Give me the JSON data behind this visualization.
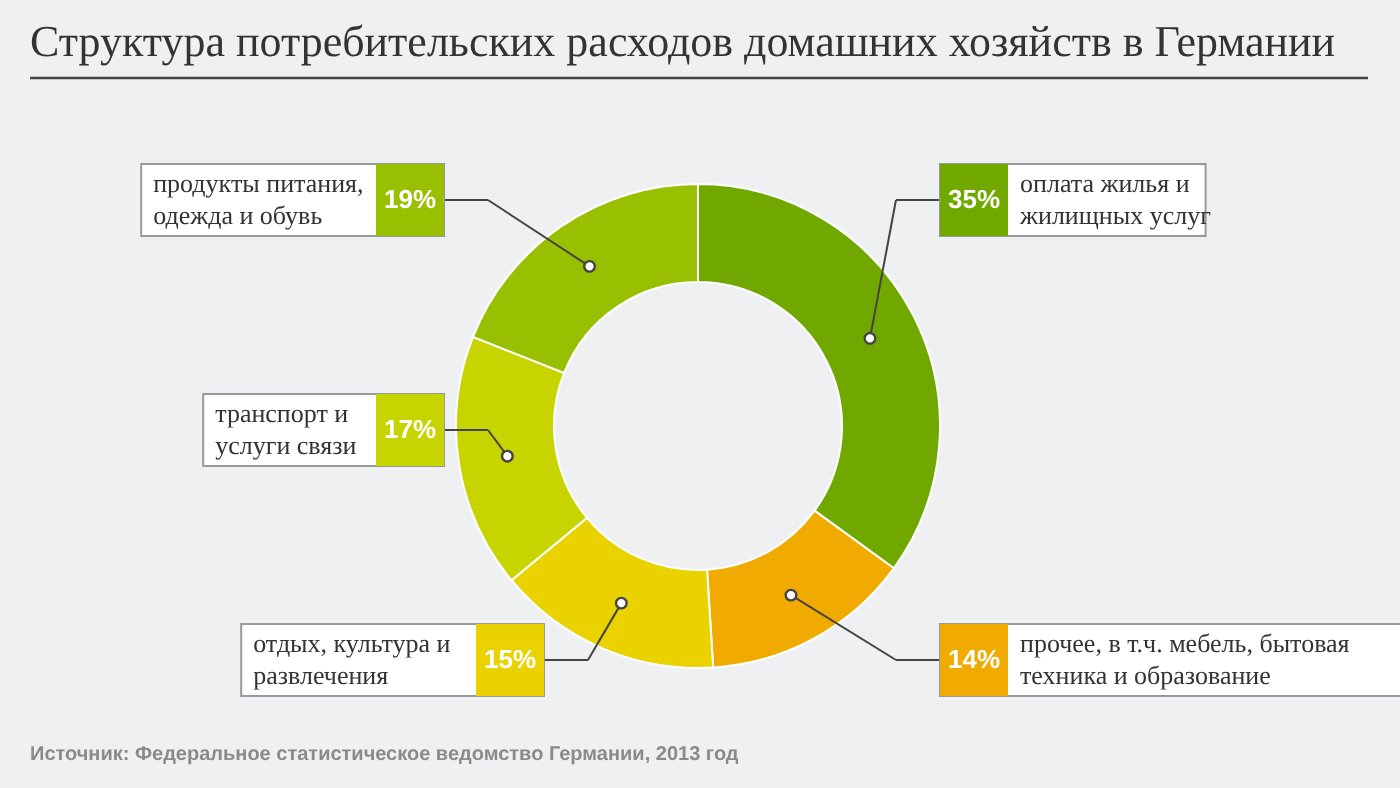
{
  "chart_data": {
    "type": "donut",
    "title": "Структура потребительских расходов домашних хозяйств в Германии",
    "categories": [
      "оплата жилья и\nжилищных услуг",
      "прочее, в т.ч. мебель, бытовая\nтехника и образование",
      "отдых, культура и\nразвлечения",
      "транспорт и\nуслуги связи",
      "продукты питания,\nодежда и обувь"
    ],
    "values": [
      35,
      14,
      15,
      17,
      19
    ],
    "value_labels": [
      "35%",
      "14%",
      "15%",
      "17%",
      "19%"
    ],
    "colors": [
      "#70a800",
      "#f0aa00",
      "#ead200",
      "#c8d400",
      "#98c000"
    ],
    "annotations": [
      "Источник: Федеральное статистическое ведомство Германии, 2013 год"
    ]
  }
}
